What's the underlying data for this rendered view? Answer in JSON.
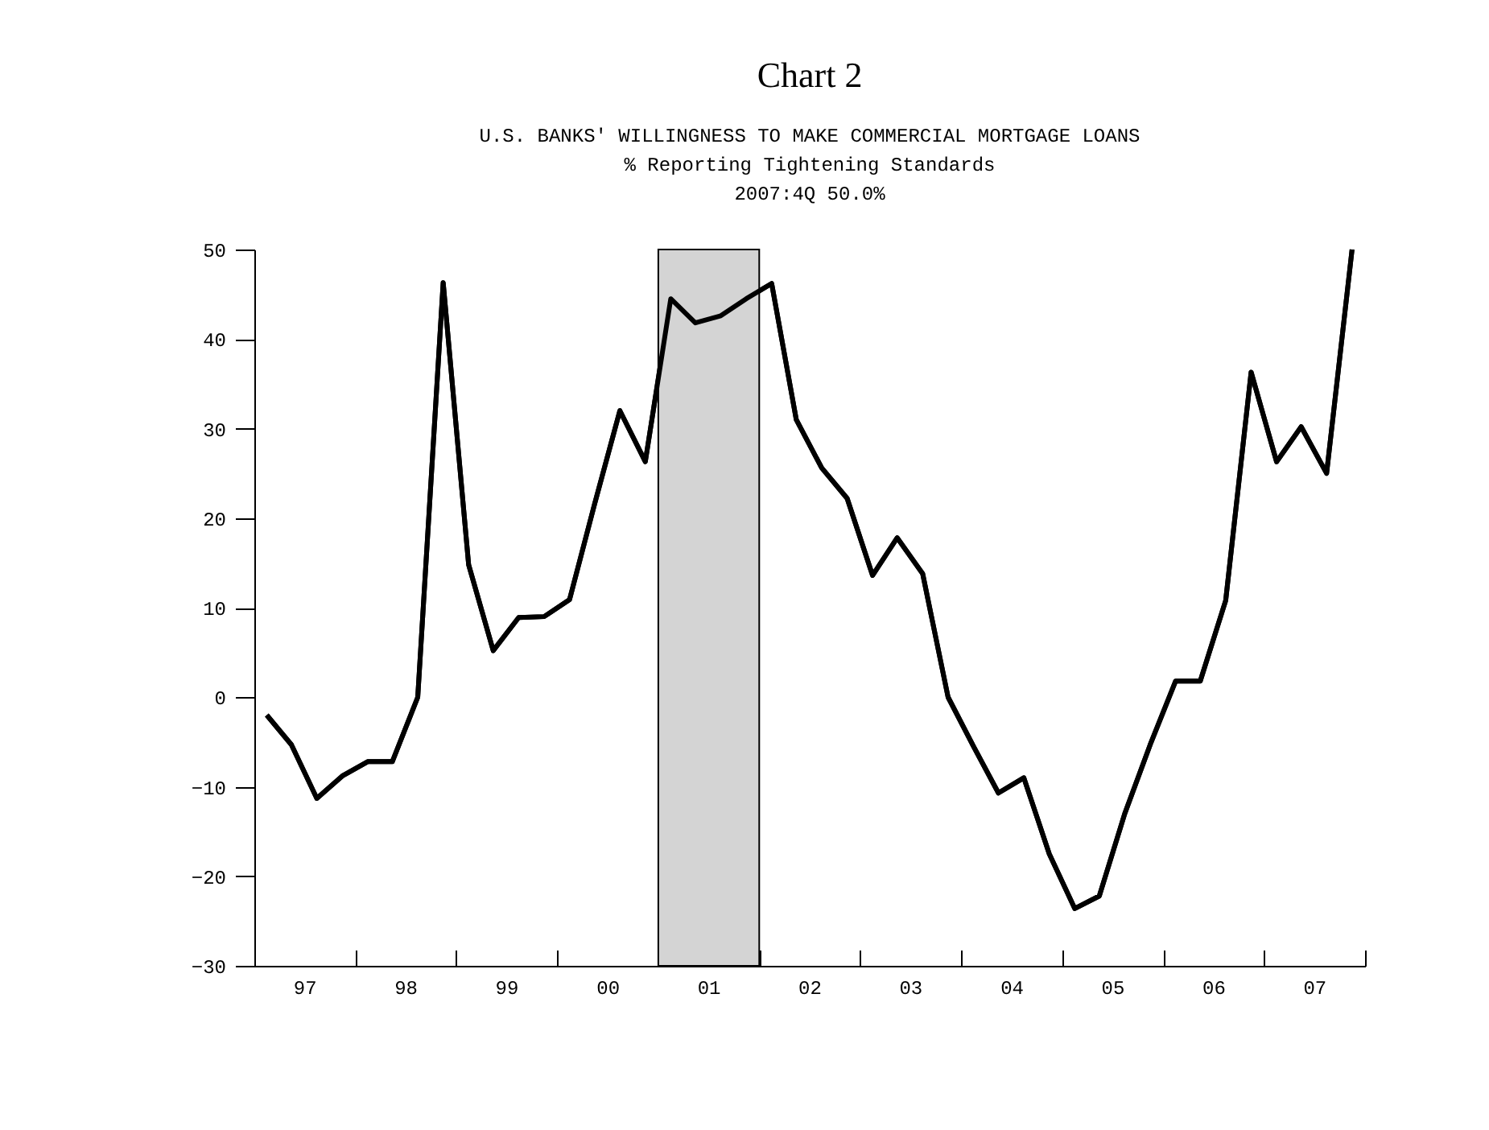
{
  "chart_data": {
    "type": "line",
    "title": "Chart 2",
    "subtitle": "U.S. BANKS' WILLINGNESS TO MAKE COMMERCIAL MORTGAGE LOANS",
    "annotations": [
      "% Reporting Tightening Standards",
      "2007:4Q 50.0%"
    ],
    "x": [
      "1997-02-15",
      "1997-05-15",
      "1997-08-15",
      "1997-11-15",
      "1998-02-15",
      "1998-05-15",
      "1998-08-15",
      "1998-11-15",
      "1999-02-15",
      "1999-05-15",
      "1999-08-15",
      "1999-11-15",
      "2000-02-15",
      "2000-05-15",
      "2000-08-15",
      "2000-11-15",
      "2001-02-15",
      "2001-05-15",
      "2001-08-15",
      "2001-11-15",
      "2002-02-15",
      "2002-05-15",
      "2002-08-15",
      "2002-11-15",
      "2003-02-15",
      "2003-05-15",
      "2003-08-15",
      "2003-11-15",
      "2004-02-15",
      "2004-05-15",
      "2004-08-15",
      "2004-11-15",
      "2005-02-15",
      "2005-05-15",
      "2005-08-15",
      "2005-11-15",
      "2006-02-15",
      "2006-05-15",
      "2006-08-15",
      "2006-11-15",
      "2007-02-15",
      "2007-05-15",
      "2007-08-15",
      "2007-11-15"
    ],
    "series": [
      {
        "color": "#000000",
        "values": [
          -2,
          -5.3,
          -11.3,
          -8.8,
          -7.2,
          -7.2,
          0,
          46.3,
          14.8,
          5.2,
          8.9,
          9,
          10.9,
          21.5,
          32,
          26.3,
          44.5,
          41.8,
          42.6,
          44.5,
          46.2,
          31,
          25.6,
          22.2,
          13.6,
          17.8,
          13.8,
          0,
          -5.5,
          -10.7,
          -9,
          -17.5,
          -23.6,
          -22.2,
          -13,
          -5.3,
          1.8,
          1.8,
          10.8,
          36.3,
          26.3,
          30.2,
          25,
          50
        ]
      }
    ],
    "xlim": [
      "1997-01-01",
      "2008-01-01"
    ],
    "xticks": [
      {
        "value": "1997-01-01",
        "label": null
      },
      {
        "value": "1997-07-01",
        "label": "97"
      },
      {
        "value": "1998-01-01",
        "label": null
      },
      {
        "value": "1998-07-01",
        "label": "98"
      },
      {
        "value": "1999-01-01",
        "label": null
      },
      {
        "value": "1999-07-01",
        "label": "99"
      },
      {
        "value": "2000-01-01",
        "label": null
      },
      {
        "value": "2000-07-01",
        "label": "00"
      },
      {
        "value": "2001-01-01",
        "label": null
      },
      {
        "value": "2001-07-01",
        "label": "01"
      },
      {
        "value": "2002-01-01",
        "label": null
      },
      {
        "value": "2002-07-01",
        "label": "02"
      },
      {
        "value": "2003-01-01",
        "label": null
      },
      {
        "value": "2003-07-01",
        "label": "03"
      },
      {
        "value": "2004-01-01",
        "label": null
      },
      {
        "value": "2004-07-01",
        "label": "04"
      },
      {
        "value": "2005-01-01",
        "label": null
      },
      {
        "value": "2005-07-01",
        "label": "05"
      },
      {
        "value": "2006-01-01",
        "label": null
      },
      {
        "value": "2006-07-01",
        "label": "06"
      },
      {
        "value": "2007-01-01",
        "label": null
      },
      {
        "value": "2007-07-01",
        "label": "07"
      },
      {
        "value": "2008-01-01",
        "label": null
      }
    ],
    "ylim": [
      -30,
      50
    ],
    "yticks": [
      -30,
      -20,
      -10,
      0,
      10,
      20,
      30,
      40,
      50
    ],
    "bands": [
      {
        "axis": "x",
        "from": "2001-01-01",
        "to": "2002-01-01",
        "color": "#d4d4d4"
      }
    ],
    "marker": "none",
    "line_style": "solid"
  }
}
